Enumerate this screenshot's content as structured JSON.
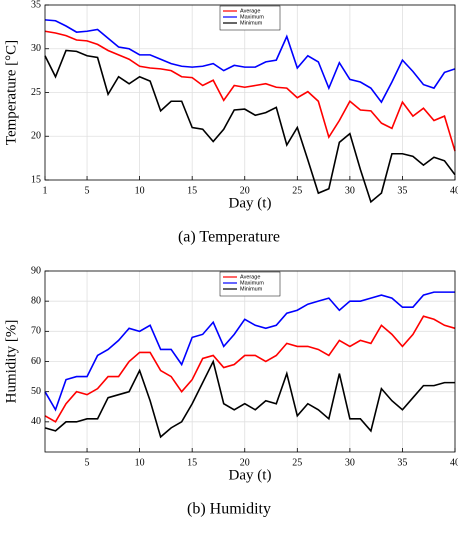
{
  "chart_data": [
    {
      "type": "line",
      "caption": "(a) Temperature",
      "xlabel": "Day (t)",
      "ylabel": "Temperature [°C]",
      "x": [
        1,
        2,
        3,
        4,
        5,
        6,
        7,
        8,
        9,
        10,
        11,
        12,
        13,
        14,
        15,
        16,
        17,
        18,
        19,
        20,
        21,
        22,
        23,
        24,
        25,
        26,
        27,
        28,
        29,
        30,
        31,
        32,
        33,
        34,
        35,
        36,
        37,
        38,
        39,
        40
      ],
      "xlim": [
        1,
        40
      ],
      "xticks": [
        1,
        5,
        10,
        15,
        20,
        25,
        30,
        35,
        40
      ],
      "ylim": [
        15,
        35
      ],
      "yticks": [
        15,
        20,
        25,
        30,
        35
      ],
      "grid": true,
      "legend": "upper center",
      "series": [
        {
          "name": "Average",
          "color": "#ff0000",
          "values": [
            32.0,
            31.8,
            31.5,
            31.0,
            30.9,
            30.5,
            29.8,
            29.3,
            28.8,
            28.0,
            27.8,
            27.7,
            27.5,
            26.8,
            26.7,
            25.8,
            26.4,
            24.1,
            25.8,
            25.6,
            25.8,
            26.0,
            25.6,
            25.5,
            24.4,
            25.1,
            24.0,
            19.9,
            21.8,
            24.0,
            23.0,
            22.9,
            21.5,
            20.9,
            23.9,
            22.3,
            23.2,
            21.8,
            22.3,
            18.3
          ]
        },
        {
          "name": "Maximum",
          "color": "#0000ff",
          "values": [
            33.3,
            33.2,
            32.6,
            31.9,
            32.0,
            32.2,
            31.2,
            30.2,
            30.0,
            29.3,
            29.3,
            28.8,
            28.3,
            28.0,
            27.9,
            28.0,
            28.3,
            27.5,
            28.1,
            27.9,
            27.9,
            28.5,
            28.7,
            31.4,
            27.8,
            29.2,
            28.5,
            25.5,
            28.4,
            26.5,
            26.2,
            25.5,
            23.9,
            26.2,
            28.7,
            27.4,
            25.9,
            25.5,
            27.3,
            27.7
          ]
        },
        {
          "name": "Minimum",
          "color": "#000000",
          "values": [
            29.2,
            26.8,
            29.8,
            29.7,
            29.2,
            29.0,
            24.8,
            26.8,
            26.0,
            26.8,
            26.3,
            22.9,
            24.0,
            24.0,
            21.0,
            20.8,
            19.4,
            20.8,
            23.0,
            23.1,
            22.4,
            22.7,
            23.3,
            19.0,
            21.0,
            17.3,
            13.5,
            14.0,
            19.3,
            20.3,
            16.2,
            12.5,
            13.5,
            18.0,
            18.0,
            17.7,
            16.7,
            17.6,
            17.2,
            15.6
          ]
        }
      ]
    },
    {
      "type": "line",
      "caption": "(b) Humidity",
      "xlabel": "Day (t)",
      "ylabel": "Humidity [%]",
      "x": [
        1,
        2,
        3,
        4,
        5,
        6,
        7,
        8,
        9,
        10,
        11,
        12,
        13,
        14,
        15,
        16,
        17,
        18,
        19,
        20,
        21,
        22,
        23,
        24,
        25,
        26,
        27,
        28,
        29,
        30,
        31,
        32,
        33,
        34,
        35,
        36,
        37,
        38,
        39,
        40
      ],
      "xlim": [
        1,
        40
      ],
      "xticks": [
        5,
        10,
        15,
        20,
        25,
        30,
        35,
        40
      ],
      "ylim": [
        30,
        90
      ],
      "yticks": [
        40,
        50,
        60,
        70,
        80,
        90
      ],
      "grid": true,
      "legend": "upper center",
      "series": [
        {
          "name": "Average",
          "color": "#ff0000",
          "values": [
            42,
            40,
            46,
            50,
            49,
            51,
            55,
            55,
            60,
            63,
            63,
            57,
            55,
            50,
            54,
            61,
            62,
            58,
            59,
            62,
            62,
            60,
            62,
            66,
            65,
            65,
            64,
            62,
            67,
            65,
            67,
            66,
            72,
            69,
            65,
            69,
            75,
            74,
            72,
            71
          ]
        },
        {
          "name": "Maximum",
          "color": "#0000ff",
          "values": [
            50,
            44,
            54,
            55,
            55,
            62,
            64,
            67,
            71,
            70,
            72,
            64,
            64,
            59,
            68,
            69,
            73,
            65,
            69,
            74,
            72,
            71,
            72,
            76,
            77,
            79,
            80,
            81,
            77,
            80,
            80,
            81,
            82,
            81,
            78,
            78,
            82,
            83,
            83,
            83
          ]
        },
        {
          "name": "Minimum",
          "color": "#000000",
          "values": [
            38,
            37,
            40,
            40,
            41,
            41,
            48,
            49,
            50,
            57,
            47,
            35,
            38,
            40,
            46,
            53,
            60,
            46,
            44,
            46,
            44,
            47,
            46,
            56,
            42,
            46,
            44,
            41,
            56,
            41,
            41,
            37,
            51,
            47,
            44,
            48,
            52,
            52,
            53,
            53
          ]
        }
      ]
    }
  ]
}
